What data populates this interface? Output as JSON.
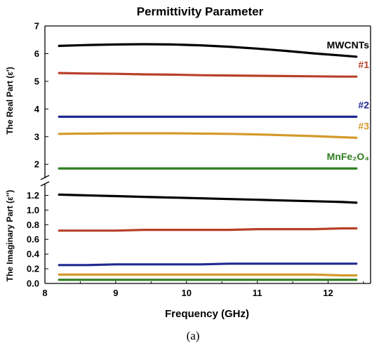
{
  "chart_data": {
    "type": "line",
    "title": "Permittivity Parameter",
    "xlabel": "Frequency (GHz)",
    "caption": "(a)",
    "xlim": [
      8,
      12.6
    ],
    "xticks": [
      "8",
      "9",
      "10",
      "11",
      "12"
    ],
    "x": [
      8.2,
      8.6,
      9.0,
      9.4,
      9.8,
      10.2,
      10.6,
      11.0,
      11.4,
      11.8,
      12.2,
      12.4
    ],
    "grid": false,
    "legend": "inline labels at right end of each series",
    "panels": [
      {
        "name": "real",
        "ylabel": "The Real Part (ε')",
        "ylim": [
          1.6,
          7
        ],
        "yticks": [
          "2",
          "3",
          "4",
          "5",
          "6",
          "7"
        ],
        "series": [
          {
            "name": "MWCNTs",
            "color": "#000000",
            "values": [
              6.28,
              6.31,
              6.33,
              6.34,
              6.33,
              6.3,
              6.25,
              6.18,
              6.1,
              6.01,
              5.93,
              5.89
            ]
          },
          {
            "name": "#1",
            "color": "#b8402a",
            "values": [
              5.3,
              5.28,
              5.27,
              5.25,
              5.24,
              5.22,
              5.21,
              5.2,
              5.19,
              5.18,
              5.17,
              5.17
            ]
          },
          {
            "name": "#2",
            "color": "#1f2a8f",
            "values": [
              3.72,
              3.72,
              3.72,
              3.72,
              3.72,
              3.72,
              3.72,
              3.72,
              3.72,
              3.72,
              3.72,
              3.72
            ]
          },
          {
            "name": "#3",
            "color": "#d39a2a",
            "values": [
              3.1,
              3.11,
              3.12,
              3.12,
              3.12,
              3.11,
              3.1,
              3.08,
              3.05,
              3.02,
              2.98,
              2.96
            ]
          },
          {
            "name": "MnFe₂O₄",
            "color": "#2e7d1e",
            "values": [
              1.85,
              1.85,
              1.85,
              1.85,
              1.85,
              1.85,
              1.85,
              1.85,
              1.85,
              1.85,
              1.85,
              1.85
            ]
          }
        ]
      },
      {
        "name": "imaginary",
        "ylabel": "The Imaginary Part (ε'')",
        "ylim": [
          0,
          1.3
        ],
        "yticks": [
          "0.0",
          "0.2",
          "0.4",
          "0.6",
          "0.8",
          "1.0",
          "1.2"
        ],
        "series": [
          {
            "name": "MWCNTs",
            "color": "#000000",
            "values": [
              1.21,
              1.2,
              1.19,
              1.18,
              1.17,
              1.16,
              1.15,
              1.14,
              1.13,
              1.12,
              1.11,
              1.1
            ]
          },
          {
            "name": "#1",
            "color": "#b8402a",
            "values": [
              0.72,
              0.72,
              0.72,
              0.73,
              0.73,
              0.73,
              0.73,
              0.74,
              0.74,
              0.74,
              0.75,
              0.75
            ]
          },
          {
            "name": "#2",
            "color": "#1f2a8f",
            "values": [
              0.25,
              0.25,
              0.26,
              0.26,
              0.26,
              0.26,
              0.27,
              0.27,
              0.27,
              0.27,
              0.27,
              0.27
            ]
          },
          {
            "name": "#3",
            "color": "#d39a2a",
            "values": [
              0.12,
              0.12,
              0.12,
              0.12,
              0.12,
              0.12,
              0.12,
              0.12,
              0.12,
              0.12,
              0.11,
              0.11
            ]
          },
          {
            "name": "MnFe₂O₄",
            "color": "#2e7d1e",
            "values": [
              0.05,
              0.05,
              0.05,
              0.05,
              0.05,
              0.05,
              0.05,
              0.05,
              0.05,
              0.05,
              0.05,
              0.05
            ]
          }
        ]
      }
    ]
  }
}
